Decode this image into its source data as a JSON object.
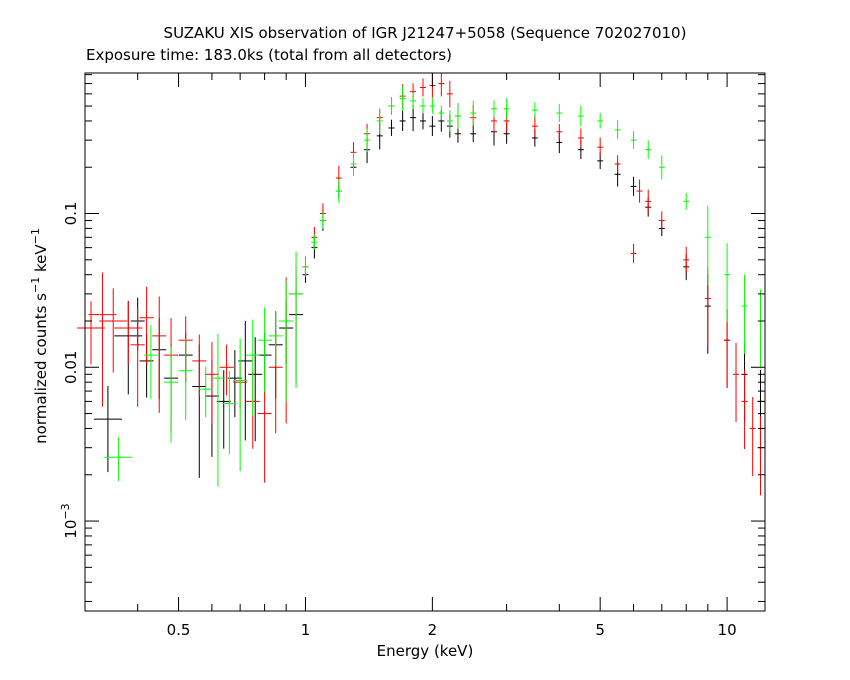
{
  "chart_data": {
    "type": "scatter",
    "title": "SUZAKU XIS observation of IGR J21247+5058 (Sequence 702027010)",
    "subtitle": "Exposure time: 183.0ks (total from all detectors)",
    "xlabel": "Energy (keV)",
    "ylabel": {
      "prefix": "normalized counts s",
      "sup1": "−1",
      "mid": " keV",
      "sup2": "−1"
    },
    "xscale": "log",
    "yscale": "log",
    "xlim": [
      0.3,
      12.3
    ],
    "ylim": [
      0.00026,
      0.82
    ],
    "grid": false,
    "x_ticks": [
      {
        "value": 0.5,
        "label": "0.5"
      },
      {
        "value": 1,
        "label": "1"
      },
      {
        "value": 2,
        "label": "2"
      },
      {
        "value": 5,
        "label": "5"
      },
      {
        "value": 10,
        "label": "10"
      }
    ],
    "y_ticks": [
      {
        "value": 0.1,
        "label": "0.1"
      },
      {
        "value": 0.01,
        "label": "0.01"
      },
      {
        "value": 0.001,
        "label_base": "10",
        "label_exp": "−3"
      }
    ],
    "series": [
      {
        "color": "#000000",
        "points": [
          [
            0.34,
            0.0046
          ],
          [
            0.38,
            0.016
          ],
          [
            0.4,
            0.02
          ],
          [
            0.42,
            0.011
          ],
          [
            0.45,
            0.013
          ],
          [
            0.48,
            0.0085
          ],
          [
            0.52,
            0.012
          ],
          [
            0.56,
            0.0075
          ],
          [
            0.6,
            0.0065
          ],
          [
            0.64,
            0.006
          ],
          [
            0.68,
            0.0085
          ],
          [
            0.72,
            0.011
          ],
          [
            0.76,
            0.009
          ],
          [
            0.8,
            0.012
          ],
          [
            0.85,
            0.014
          ],
          [
            0.9,
            0.018
          ],
          [
            0.95,
            0.022
          ],
          [
            1.0,
            0.04
          ],
          [
            1.05,
            0.06
          ],
          [
            1.1,
            0.09
          ],
          [
            1.2,
            0.14
          ],
          [
            1.3,
            0.2
          ],
          [
            1.4,
            0.26
          ],
          [
            1.5,
            0.32
          ],
          [
            1.6,
            0.36
          ],
          [
            1.7,
            0.4
          ],
          [
            1.8,
            0.42
          ],
          [
            1.9,
            0.4
          ],
          [
            2.0,
            0.37
          ],
          [
            2.1,
            0.4
          ],
          [
            2.2,
            0.37
          ],
          [
            2.3,
            0.33
          ],
          [
            2.5,
            0.33
          ],
          [
            2.8,
            0.34
          ],
          [
            3.0,
            0.33
          ],
          [
            3.5,
            0.31
          ],
          [
            4.0,
            0.29
          ],
          [
            4.5,
            0.26
          ],
          [
            5.0,
            0.22
          ],
          [
            5.5,
            0.18
          ],
          [
            6.0,
            0.15
          ],
          [
            6.5,
            0.11
          ],
          [
            7.0,
            0.08
          ],
          [
            8.0,
            0.045
          ],
          [
            9.0,
            0.025
          ],
          [
            10.0,
            0.015
          ],
          [
            11.0,
            0.009
          ],
          [
            12.0,
            0.006
          ]
        ]
      },
      {
        "color": "#ff0000",
        "points": [
          [
            0.31,
            0.018
          ],
          [
            0.33,
            0.022
          ],
          [
            0.35,
            0.02
          ],
          [
            0.38,
            0.018
          ],
          [
            0.4,
            0.014
          ],
          [
            0.42,
            0.021
          ],
          [
            0.45,
            0.016
          ],
          [
            0.48,
            0.012
          ],
          [
            0.52,
            0.015
          ],
          [
            0.56,
            0.011
          ],
          [
            0.6,
            0.009
          ],
          [
            0.65,
            0.01
          ],
          [
            0.7,
            0.008
          ],
          [
            0.75,
            0.006
          ],
          [
            0.8,
            0.005
          ],
          [
            0.85,
            0.01
          ],
          [
            0.9,
            0.02
          ],
          [
            0.95,
            0.03
          ],
          [
            1.0,
            0.045
          ],
          [
            1.05,
            0.07
          ],
          [
            1.1,
            0.1
          ],
          [
            1.2,
            0.17
          ],
          [
            1.3,
            0.25
          ],
          [
            1.4,
            0.33
          ],
          [
            1.5,
            0.42
          ],
          [
            1.6,
            0.5
          ],
          [
            1.7,
            0.58
          ],
          [
            1.8,
            0.62
          ],
          [
            1.9,
            0.66
          ],
          [
            2.0,
            0.68
          ],
          [
            2.1,
            0.7
          ],
          [
            2.2,
            0.6
          ],
          [
            2.3,
            0.43
          ],
          [
            2.5,
            0.42
          ],
          [
            2.8,
            0.4
          ],
          [
            3.0,
            0.4
          ],
          [
            3.5,
            0.37
          ],
          [
            4.0,
            0.34
          ],
          [
            4.5,
            0.31
          ],
          [
            5.0,
            0.27
          ],
          [
            5.5,
            0.21
          ],
          [
            6.0,
            0.055
          ],
          [
            6.2,
            0.14
          ],
          [
            6.5,
            0.12
          ],
          [
            7.0,
            0.09
          ],
          [
            8.0,
            0.05
          ],
          [
            9.0,
            0.028
          ],
          [
            10.0,
            0.015
          ],
          [
            10.5,
            0.009
          ],
          [
            11.0,
            0.006
          ],
          [
            11.5,
            0.004
          ],
          [
            12.0,
            0.003
          ]
        ]
      },
      {
        "color": "#00ff00",
        "points": [
          [
            0.36,
            0.0026
          ],
          [
            0.43,
            0.012
          ],
          [
            0.48,
            0.008
          ],
          [
            0.52,
            0.0095
          ],
          [
            0.58,
            0.0072
          ],
          [
            0.62,
            0.0085
          ],
          [
            0.66,
            0.0058
          ],
          [
            0.7,
            0.0082
          ],
          [
            0.75,
            0.012
          ],
          [
            0.8,
            0.015
          ],
          [
            0.85,
            0.016
          ],
          [
            0.9,
            0.02
          ],
          [
            0.95,
            0.03
          ],
          [
            1.0,
            0.045
          ],
          [
            1.05,
            0.065
          ],
          [
            1.1,
            0.09
          ],
          [
            1.2,
            0.14
          ],
          [
            1.3,
            0.21
          ],
          [
            1.4,
            0.3
          ],
          [
            1.5,
            0.4
          ],
          [
            1.6,
            0.5
          ],
          [
            1.7,
            0.56
          ],
          [
            1.8,
            0.54
          ],
          [
            1.9,
            0.5
          ],
          [
            2.0,
            0.5
          ],
          [
            2.1,
            0.45
          ],
          [
            2.2,
            0.4
          ],
          [
            2.3,
            0.43
          ],
          [
            2.5,
            0.45
          ],
          [
            2.8,
            0.48
          ],
          [
            3.0,
            0.48
          ],
          [
            3.5,
            0.47
          ],
          [
            4.0,
            0.45
          ],
          [
            4.5,
            0.43
          ],
          [
            5.0,
            0.4
          ],
          [
            5.5,
            0.35
          ],
          [
            6.0,
            0.3
          ],
          [
            6.5,
            0.26
          ],
          [
            7.0,
            0.2
          ],
          [
            8.0,
            0.12
          ],
          [
            9.0,
            0.07
          ],
          [
            10.0,
            0.04
          ],
          [
            11.0,
            0.025
          ],
          [
            12.0,
            0.02
          ]
        ]
      }
    ]
  }
}
